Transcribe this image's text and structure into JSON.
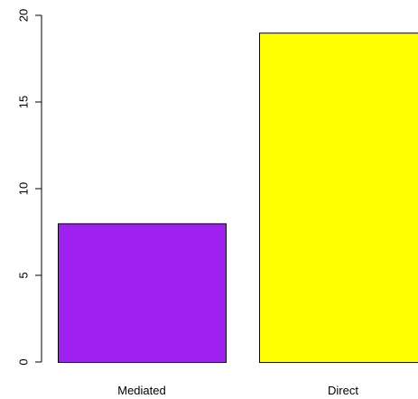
{
  "chart_data": {
    "type": "bar",
    "categories": [
      "Mediated",
      "Direct"
    ],
    "values": [
      8,
      19
    ],
    "colors": [
      "#a020f0",
      "#ffff00"
    ],
    "ylim": [
      0,
      20
    ],
    "yticks": [
      0,
      5,
      10,
      15,
      20
    ],
    "ytick_labels": [
      "0",
      "5",
      "10",
      "15",
      "20"
    ],
    "grid": false,
    "legend": "none",
    "title": "",
    "xlabel": "",
    "ylabel": ""
  }
}
